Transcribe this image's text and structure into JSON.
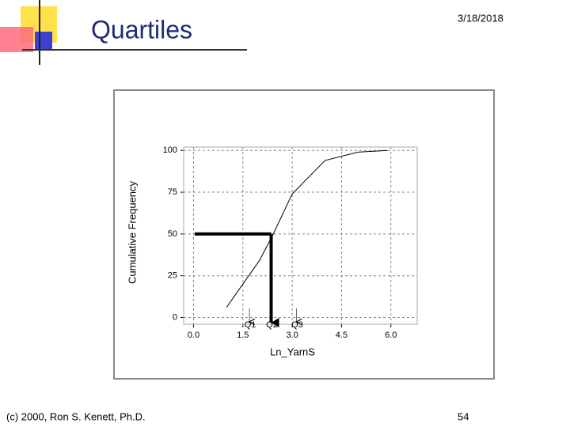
{
  "slide": {
    "title": "Quartiles",
    "date": "3/18/2018",
    "footer": "(c) 2000, Ron S. Kenett, Ph.D.",
    "page": "54"
  },
  "chart_data": {
    "type": "line",
    "x_label": "Ln_YarnS",
    "y_label": "Cumulative Frequency",
    "x": [
      1.0,
      2.0,
      2.4,
      3.0,
      4.0,
      5.0,
      5.9
    ],
    "series": [
      {
        "color": "#000000",
        "values": [
          6,
          34,
          49,
          74,
          94,
          99,
          100
        ]
      }
    ],
    "xlim": [
      -0.3,
      6.8
    ],
    "ylim": [
      -4,
      102
    ],
    "xticks": [
      {
        "value": 0,
        "label": "0.0"
      },
      1.5,
      {
        "value": 3,
        "label": "3.0"
      },
      4.5,
      {
        "value": 6,
        "label": "6.0"
      }
    ],
    "yticks": [
      0,
      25,
      50,
      75,
      100
    ],
    "grid": true,
    "annotations": [
      {
        "label": "Q1",
        "x": 1.7
      },
      {
        "label": "Q2",
        "x": 2.36,
        "y": 50
      },
      {
        "label": "Q3",
        "x": 3.13
      }
    ]
  }
}
